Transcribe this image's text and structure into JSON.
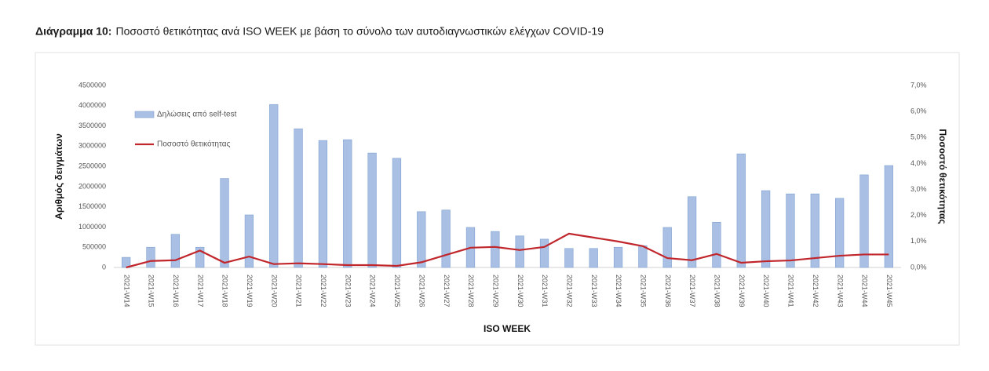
{
  "chart_data": {
    "type": "combo",
    "title_label": "Διάγραμμα 10:",
    "title": "Ποσοστό θετικότητας ανά ISO WEEK με βάση το σύνολο των αυτοδιαγνωστικών ελέγχων COVID-19",
    "x_label": "ISO WEEK",
    "y_label": "Αριθμός δειγμάτων",
    "y2_label": "Ποσοστό θετικότητας",
    "categories": [
      "2021-W14",
      "2021-W15",
      "2021-W16",
      "2021-W17",
      "2021-W18",
      "2021-W19",
      "2021-W20",
      "2021-W21",
      "2021-W22",
      "2021-W23",
      "2021-W24",
      "2021-W25",
      "2021-W26",
      "2021-W27",
      "2021-W28",
      "2021-W29",
      "2021-W30",
      "2021-W31",
      "2021-W32",
      "2021-W33",
      "2021-W34",
      "2021-W35",
      "2021-W36",
      "2021-W37",
      "2021-W38",
      "2021-W39",
      "2021-W40",
      "2021-W41",
      "2021-W42",
      "2021-W43",
      "2021-W44",
      "2021-W45"
    ],
    "series": [
      {
        "name": "Δηλώσεις από self-test",
        "type": "bar",
        "color": "#a9c0e4",
        "values": [
          250000,
          500000,
          820000,
          500000,
          2200000,
          1300000,
          4030000,
          3430000,
          3140000,
          3160000,
          2830000,
          2700000,
          1380000,
          1420000,
          990000,
          890000,
          780000,
          700000,
          470000,
          470000,
          500000,
          540000,
          990000,
          1750000,
          1120000,
          2810000,
          1900000,
          1820000,
          1820000,
          1710000,
          2290000,
          2520000
        ]
      },
      {
        "name": "Ποσοστό θετικότητας",
        "type": "line",
        "axis": "y2",
        "color": "#c0262b",
        "values": [
          0.0,
          0.25,
          0.28,
          0.65,
          0.18,
          0.42,
          0.13,
          0.16,
          0.13,
          0.09,
          0.09,
          0.06,
          0.2,
          0.48,
          0.76,
          0.79,
          0.67,
          0.79,
          1.3,
          1.15,
          1.0,
          0.82,
          0.36,
          0.28,
          0.52,
          0.18,
          0.24,
          0.27,
          0.36,
          0.45,
          0.5,
          0.5
        ]
      }
    ],
    "ylim": [
      0,
      4500000
    ],
    "yticks": [
      0,
      500000,
      1000000,
      1500000,
      2000000,
      2500000,
      3000000,
      3500000,
      4000000,
      4500000
    ],
    "y2lim": [
      0,
      7
    ],
    "y2ticks": [
      {
        "value": 0,
        "label": "0,0%"
      },
      {
        "value": 1,
        "label": "1,0%"
      },
      {
        "value": 2,
        "label": "2,0%"
      },
      {
        "value": 3,
        "label": "3,0%"
      },
      {
        "value": 4,
        "label": "4,0%"
      },
      {
        "value": 5,
        "label": "5,0%"
      },
      {
        "value": 6,
        "label": "6,0%"
      },
      {
        "value": 7,
        "label": "7,0%"
      }
    ],
    "legend": "top-left"
  }
}
